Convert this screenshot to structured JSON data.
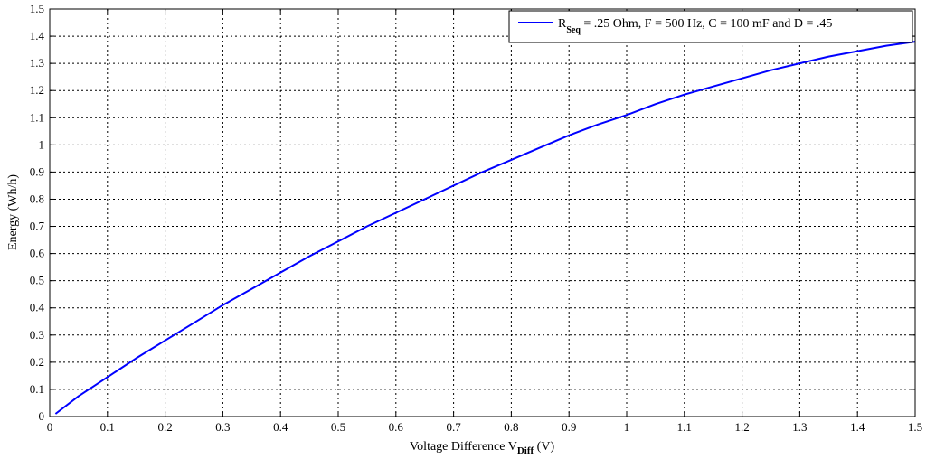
{
  "chart_data": {
    "type": "line",
    "xlabel": "Voltage Difference V",
    "xlabel_sub": "Diff",
    "xlabel_unit": " (V)",
    "ylabel": "Energy (Wh/h)",
    "xlim": [
      0,
      1.5
    ],
    "ylim": [
      0,
      1.5
    ],
    "x_ticks": [
      "0",
      "0.1",
      "0.2",
      "0.3",
      "0.4",
      "0.5",
      "0.6",
      "0.7",
      "0.8",
      "0.9",
      "1",
      "1.1",
      "1.2",
      "1.3",
      "1.4",
      "1.5"
    ],
    "y_ticks": [
      "0",
      "0.1",
      "0.2",
      "0.3",
      "0.4",
      "0.5",
      "0.6",
      "0.7",
      "0.8",
      "0.9",
      "1",
      "1.1",
      "1.2",
      "1.3",
      "1.4",
      "1.5"
    ],
    "grid": true,
    "legend_position": "top-right",
    "legend": {
      "prefix": "R",
      "prefix_sub": "Seq",
      "rest": " = .25 Ohm, F = 500 Hz, C = 100 mF and D = .45"
    },
    "series": [
      {
        "color": "#0000ff",
        "x": [
          0.01,
          0.05,
          0.1,
          0.15,
          0.2,
          0.25,
          0.3,
          0.35,
          0.4,
          0.45,
          0.5,
          0.55,
          0.6,
          0.65,
          0.7,
          0.75,
          0.8,
          0.85,
          0.9,
          0.95,
          1.0,
          1.05,
          1.1,
          1.15,
          1.2,
          1.25,
          1.3,
          1.35,
          1.4,
          1.45,
          1.5
        ],
        "y": [
          0.01,
          0.075,
          0.145,
          0.215,
          0.28,
          0.345,
          0.41,
          0.47,
          0.53,
          0.59,
          0.645,
          0.7,
          0.75,
          0.8,
          0.85,
          0.9,
          0.945,
          0.99,
          1.035,
          1.075,
          1.11,
          1.15,
          1.185,
          1.215,
          1.245,
          1.275,
          1.3,
          1.325,
          1.345,
          1.365,
          1.38
        ]
      }
    ]
  }
}
